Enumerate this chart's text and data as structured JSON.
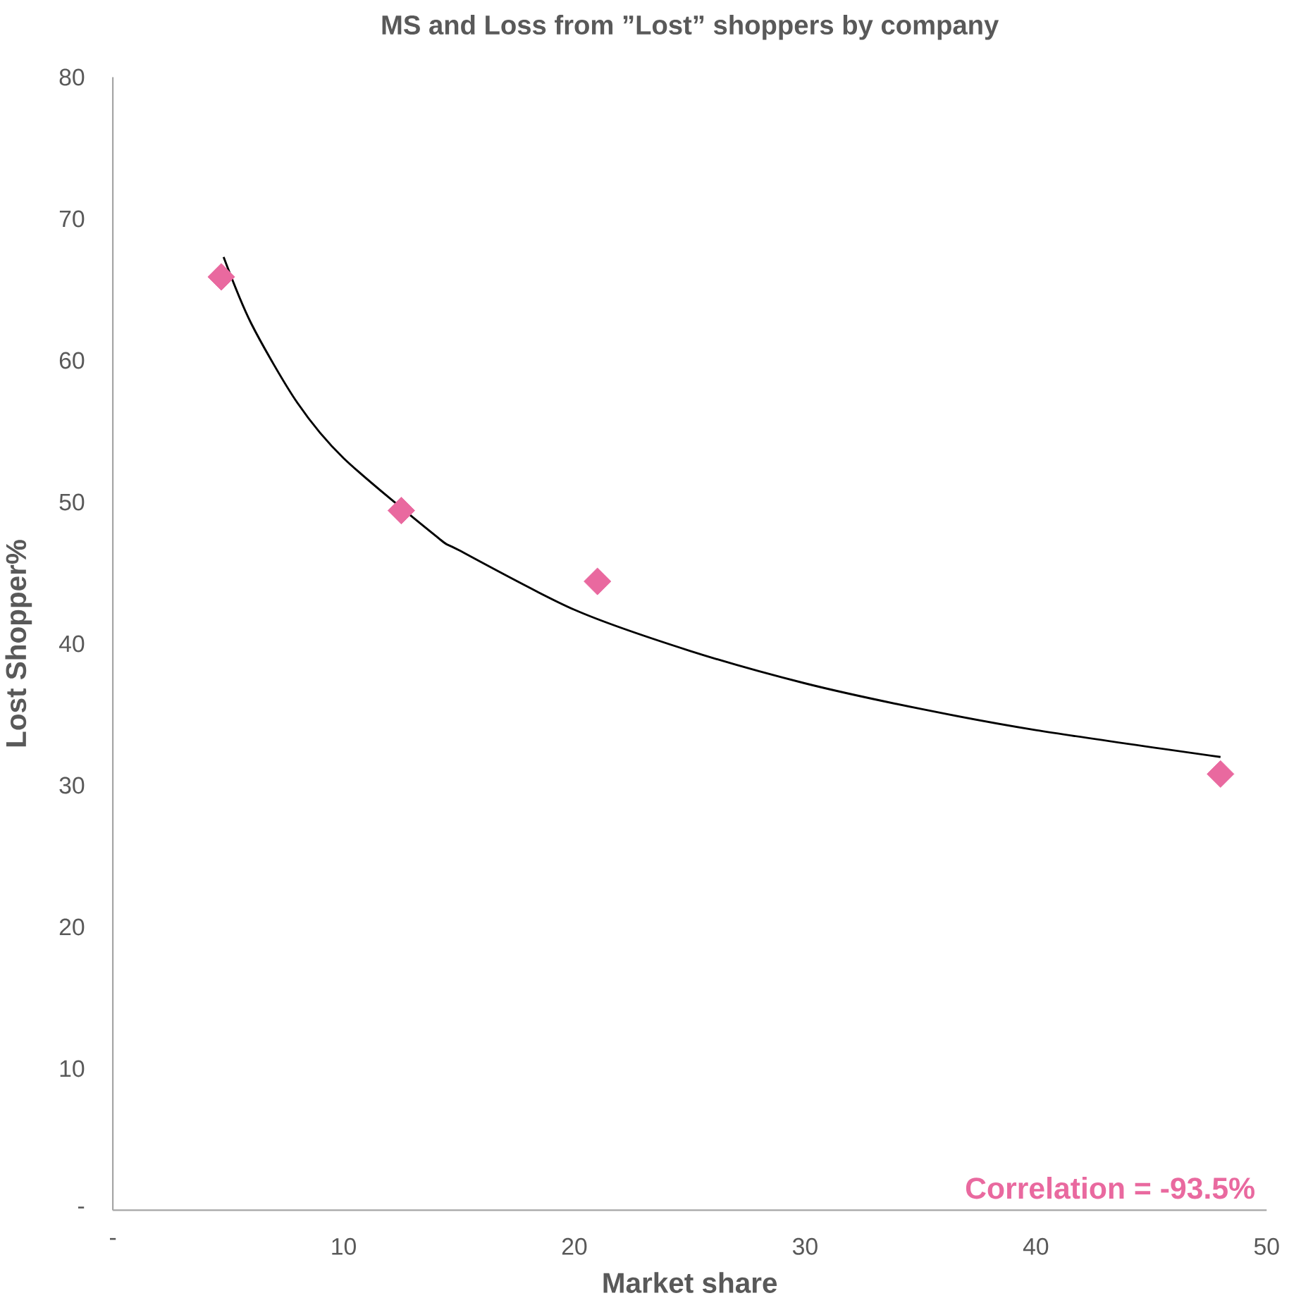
{
  "chart_data": {
    "type": "scatter",
    "title": "MS and Loss from ”Lost” shoppers by company",
    "xlabel": "Market share",
    "ylabel": "Lost Shopper%",
    "x": [
      4.7,
      12.5,
      21.0,
      48.0
    ],
    "series": [
      {
        "color": "#e9699f",
        "marker": "diamond",
        "values": [
          65.9,
          49.4,
          44.4,
          30.8
        ]
      },
      {
        "type": "line",
        "color": "#000000",
        "marker": "none",
        "x": [
          4.8,
          6,
          8,
          10,
          14,
          15,
          20,
          25,
          30,
          35,
          40,
          48
        ],
        "values": [
          67.3,
          62.6,
          57.0,
          53.1,
          47.6,
          46.6,
          42.4,
          39.5,
          37.2,
          35.4,
          33.9,
          32.0
        ]
      }
    ],
    "xlim": [
      0,
      50
    ],
    "ylim": [
      0,
      80
    ],
    "xticks": [
      {
        "value": 0,
        "label": "-"
      },
      10,
      20,
      30,
      40,
      50
    ],
    "yticks": [
      {
        "value": 0,
        "label": "-"
      },
      10,
      20,
      30,
      40,
      50,
      60,
      70,
      80
    ],
    "grid": false,
    "legend": false,
    "annotations": [
      "Correlation = -93.5%"
    ]
  }
}
